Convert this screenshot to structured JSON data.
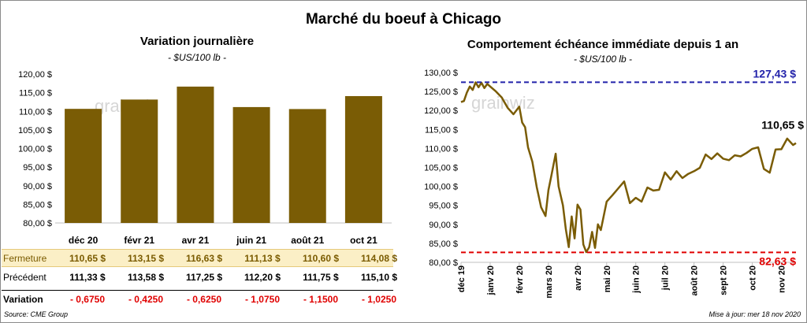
{
  "title": "Marché du boeuf à Chicago",
  "colors": {
    "bar": "#7a5c05",
    "line": "#7a5c05",
    "high_line": "#2222aa",
    "low_line": "#e00000",
    "negative": "#e00000"
  },
  "watermark": "grainwiz",
  "chart_data": [
    {
      "type": "bar",
      "title": "Variation journalière",
      "ylabel": "- $US/100 lb -",
      "ylim": [
        80,
        120
      ],
      "yticks": [
        "80,00 $",
        "85,00 $",
        "90,00 $",
        "95,00 $",
        "100,00 $",
        "105,00 $",
        "110,00 $",
        "115,00 $",
        "120,00 $"
      ],
      "categories": [
        "déc 20",
        "févr 21",
        "avr 21",
        "juin 21",
        "août 21",
        "oct 21"
      ],
      "values": [
        110.65,
        113.15,
        116.63,
        111.13,
        110.6,
        114.08
      ]
    },
    {
      "type": "line",
      "title": "Comportement échéance immédiate depuis 1 an",
      "ylabel": "- $US/100 lb -",
      "ylim": [
        80,
        130
      ],
      "yticks": [
        "80,00 $",
        "85,00 $",
        "90,00 $",
        "95,00 $",
        "100,00 $",
        "105,00 $",
        "110,00 $",
        "115,00 $",
        "120,00 $",
        "125,00 $",
        "130,00 $"
      ],
      "xticks": [
        "déc 19",
        "janv 20",
        "févr 20",
        "mars 20",
        "avr 20",
        "mai 20",
        "juin 20",
        "juil 20",
        "août 20",
        "sept 20",
        "oct 20",
        "nov 20"
      ],
      "high": {
        "value": 127.43,
        "label": "127,43 $"
      },
      "low": {
        "value": 82.63,
        "label": "82,63 $"
      },
      "last_label": "110,65 $",
      "series": [
        {
          "x": [
            0,
            0.1,
            0.2,
            0.3,
            0.4,
            0.5,
            0.6,
            0.7,
            0.8,
            0.9,
            1.0,
            1.2,
            1.4,
            1.6,
            1.8,
            2.0,
            2.1,
            2.2,
            2.3,
            2.45,
            2.6,
            2.75,
            2.9,
            3.0,
            3.1,
            3.25,
            3.35,
            3.5,
            3.6,
            3.7,
            3.8,
            3.9,
            4.0,
            4.1,
            4.2,
            4.3,
            4.4,
            4.5,
            4.6,
            4.7,
            4.8,
            5.0,
            5.2,
            5.4,
            5.6,
            5.8,
            6.0,
            6.2,
            6.4,
            6.6,
            6.8,
            7.0,
            7.2,
            7.4,
            7.6,
            7.8,
            8.0,
            8.2,
            8.4,
            8.6,
            8.8,
            9.0,
            9.2,
            9.4,
            9.6,
            9.8,
            10.0,
            10.2,
            10.4,
            10.6,
            10.8,
            11.0,
            11.2,
            11.4,
            11.5
          ],
          "y": [
            122.2,
            122.5,
            124.7,
            126.3,
            125.4,
            127.4,
            126.1,
            127.3,
            125.9,
            127.0,
            126.3,
            125.0,
            123.4,
            120.7,
            119.0,
            121.0,
            116.8,
            115.6,
            110.3,
            106.5,
            99.8,
            94.5,
            92.2,
            99.0,
            102.8,
            108.6,
            100.0,
            95.0,
            88.7,
            84.0,
            92.1,
            86.3,
            95.2,
            93.9,
            84.7,
            82.7,
            84.0,
            88.0,
            83.8,
            90.0,
            88.5,
            96.0,
            97.7,
            99.5,
            101.3,
            95.6,
            97.0,
            96.0,
            99.7,
            98.9,
            99.1,
            103.7,
            101.8,
            104.0,
            102.2,
            103.3,
            104.0,
            104.9,
            108.4,
            107.2,
            108.7,
            107.3,
            106.9,
            108.2,
            107.9,
            108.8,
            109.9,
            110.3,
            104.6,
            103.6,
            109.7,
            109.8,
            112.6,
            110.9,
            111.4
          ]
        }
      ]
    }
  ],
  "table": {
    "rows": [
      {
        "label": "Fermeture",
        "values": [
          "110,65 $",
          "113,15 $",
          "116,63 $",
          "111,13 $",
          "110,60 $",
          "114,08 $"
        ]
      },
      {
        "label": "Précédent",
        "values": [
          "111,33 $",
          "113,58 $",
          "117,25 $",
          "112,20 $",
          "111,75 $",
          "115,10 $"
        ]
      },
      {
        "label": "Variation",
        "values": [
          "- 0,6750",
          "- 0,4250",
          "- 0,6250",
          "- 1,0750",
          "- 1,1500",
          "- 1,0250"
        ]
      }
    ]
  },
  "footer": {
    "source": "Source: CME Group",
    "updated": "Mise à jour: mer 18 nov 2020"
  }
}
